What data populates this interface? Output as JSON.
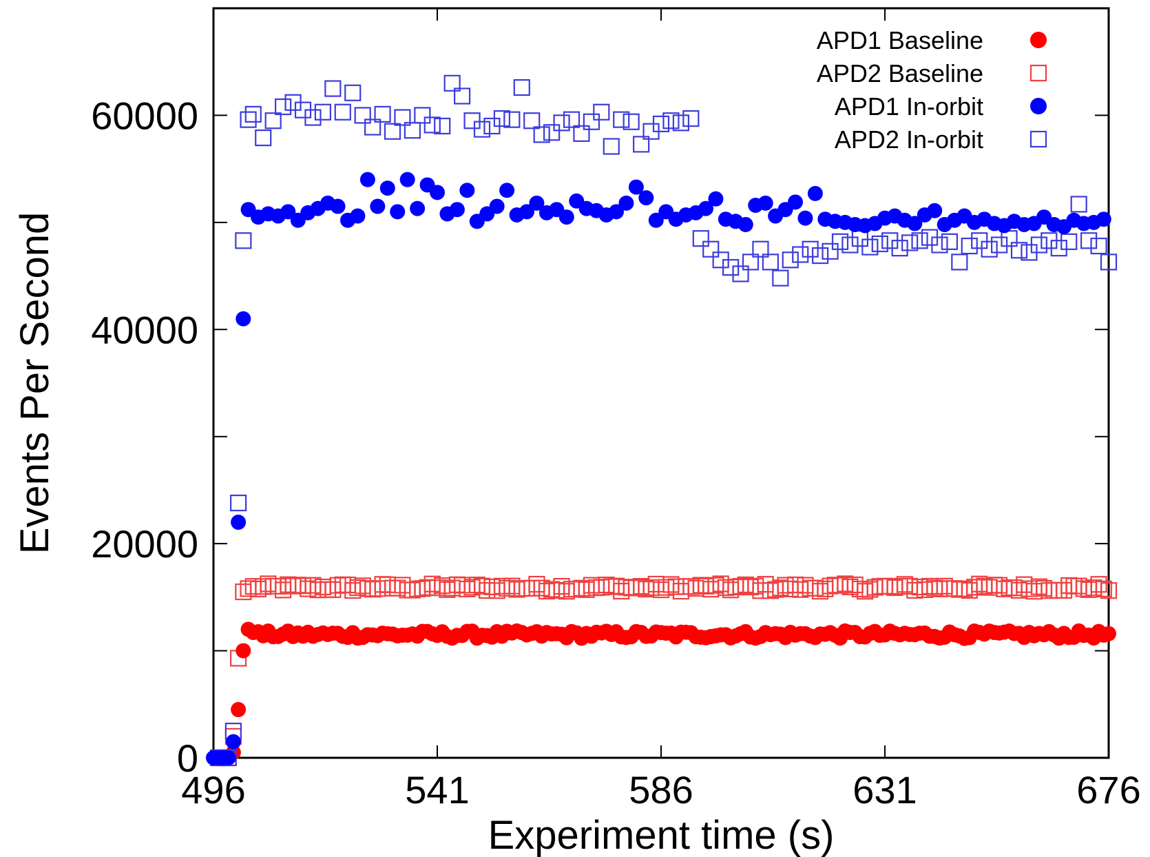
{
  "chart_data": {
    "type": "scatter",
    "title": "",
    "xlabel": "Experiment time (s)",
    "ylabel": "Events Per Second",
    "xlim": [
      496,
      676
    ],
    "ylim": [
      0,
      70000
    ],
    "xticks": [
      496,
      541,
      586,
      631,
      676
    ],
    "yticks": [
      0,
      20000,
      40000,
      60000
    ],
    "ytick_labels": [
      "0",
      "20000",
      "40000",
      "60000"
    ],
    "grid": false,
    "legend": "top-right",
    "colors": {
      "red": "#ff0000",
      "red_light": "#f04040",
      "blue": "#0000ff",
      "blue_light": "#3c3cdc"
    },
    "series": [
      {
        "name": "APD1 Baseline",
        "marker": "filled-circle",
        "color": "#ff0000",
        "x": [
          497,
          499,
          500,
          501,
          502,
          503,
          504
        ],
        "y": [
          0,
          0,
          500,
          4500,
          10000,
          12000,
          11700
        ],
        "plateau": {
          "x_start": 505,
          "x_end": 676,
          "mean": 11500,
          "noise": 350
        }
      },
      {
        "name": "APD2 Baseline",
        "marker": "open-square",
        "color": "#f04040",
        "x": [
          497,
          499,
          500,
          501,
          502,
          503
        ],
        "y": [
          0,
          0,
          2000,
          9300,
          15500,
          15800
        ],
        "plateau": {
          "x_start": 504,
          "x_end": 676,
          "mean": 15900,
          "noise": 350
        }
      },
      {
        "name": "APD1 In-orbit",
        "marker": "filled-circle",
        "color": "#0000ff",
        "x": [
          496,
          497,
          498,
          499,
          500,
          501,
          502,
          503,
          505,
          507,
          509,
          511,
          513,
          515,
          517,
          519,
          521,
          523,
          525,
          527,
          529,
          531,
          533,
          535,
          537,
          539,
          541,
          543,
          545,
          547,
          549,
          551,
          553,
          555,
          557,
          559,
          561,
          563,
          565,
          567,
          569,
          571,
          573,
          575,
          577,
          579,
          581,
          583,
          585,
          587,
          589,
          591,
          593,
          595,
          597,
          599,
          601,
          603,
          605,
          607,
          609,
          611,
          613,
          615,
          617,
          619,
          621,
          623,
          625,
          627,
          629,
          631,
          633,
          635,
          637,
          639,
          641,
          643,
          645,
          647,
          649,
          651,
          653,
          655,
          657,
          659,
          661,
          663,
          665,
          667,
          669,
          671,
          673,
          675
        ],
        "y": [
          0,
          0,
          0,
          0,
          1500,
          22000,
          41000,
          51200,
          50500,
          50800,
          50600,
          51000,
          50200,
          50900,
          51300,
          51800,
          51500,
          50200,
          50600,
          54000,
          51500,
          53200,
          51000,
          54000,
          51300,
          53500,
          52800,
          50800,
          51200,
          53000,
          50100,
          50800,
          51500,
          53000,
          50700,
          51000,
          51800,
          50900,
          51200,
          50500,
          52000,
          51300,
          51100,
          50700,
          51000,
          51800,
          53300,
          52300,
          50200,
          51000,
          50300,
          50700,
          50900,
          51300,
          52200,
          50300,
          50100,
          49800,
          51600,
          51800,
          50600,
          51200,
          51900,
          50400,
          52700,
          50300,
          50100,
          50000,
          49800,
          49700,
          49900,
          50400,
          50600,
          50200,
          49900,
          50700,
          51100,
          49800,
          50200,
          50600,
          50000,
          50300,
          49900,
          49700,
          50100,
          49800,
          49900,
          50500,
          49800,
          49600,
          50200,
          49900,
          50000,
          50300
        ]
      },
      {
        "name": "APD2 In-orbit",
        "marker": "open-square",
        "color": "#3c3cdc",
        "x": [
          497,
          498,
          499,
          500,
          501,
          502,
          503,
          504,
          506,
          508,
          510,
          512,
          514,
          516,
          518,
          520,
          522,
          524,
          526,
          528,
          530,
          532,
          534,
          536,
          538,
          540,
          542,
          544,
          546,
          548,
          550,
          552,
          554,
          556,
          558,
          560,
          562,
          564,
          566,
          568,
          570,
          572,
          574,
          576,
          578,
          580,
          582,
          584,
          586,
          588,
          590,
          592,
          594,
          596,
          598,
          600,
          602,
          604,
          606,
          608,
          610,
          612,
          614,
          616,
          618,
          620,
          622,
          624,
          626,
          628,
          630,
          632,
          634,
          636,
          638,
          640,
          642,
          644,
          646,
          648,
          650,
          652,
          654,
          656,
          658,
          660,
          662,
          664,
          666,
          668,
          670,
          672,
          674,
          676
        ],
        "y": [
          0,
          0,
          0,
          2500,
          23800,
          48300,
          59600,
          60100,
          57900,
          59500,
          60800,
          61200,
          60500,
          59800,
          60300,
          62500,
          60300,
          62100,
          60000,
          58900,
          60100,
          58500,
          59800,
          58600,
          60000,
          59100,
          59000,
          63000,
          61800,
          59500,
          58700,
          59000,
          59700,
          59600,
          62600,
          59500,
          58200,
          58400,
          59300,
          59600,
          58300,
          59400,
          60300,
          57100,
          59600,
          59400,
          57300,
          58500,
          59200,
          59500,
          59300,
          59700,
          48500,
          47500,
          46500,
          45800,
          45200,
          46300,
          47500,
          46300,
          44800,
          46500,
          47000,
          47500,
          46900,
          47300,
          48200,
          47900,
          48500,
          47700,
          48000,
          48300,
          47600,
          48100,
          48300,
          48600,
          47900,
          48200,
          46300,
          47800,
          48300,
          47500,
          47900,
          48500,
          47400,
          47200,
          47900,
          48300,
          47600,
          48200,
          51700,
          48300,
          47800,
          46300
        ]
      }
    ]
  }
}
